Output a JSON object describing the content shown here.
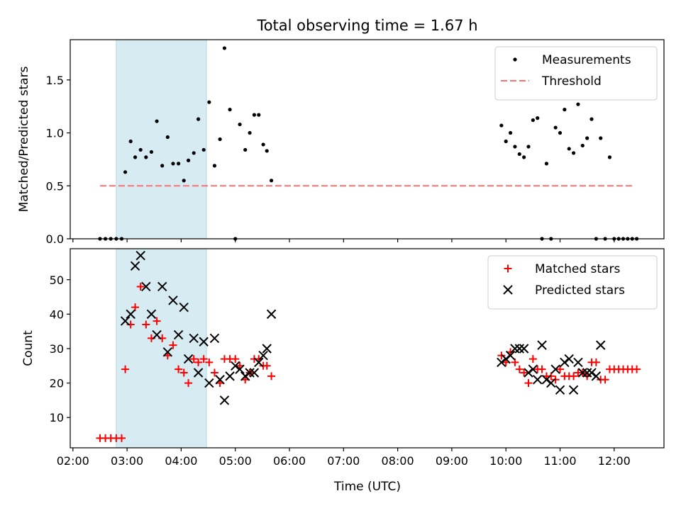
{
  "chart_data": {
    "type": "scatter",
    "title": "Total observing time = 1.67 h",
    "xlabel": "Time (UTC)",
    "x_ticks": [
      "02:00",
      "03:00",
      "04:00",
      "05:00",
      "06:00",
      "07:00",
      "08:00",
      "09:00",
      "10:00",
      "11:00",
      "12:00"
    ],
    "highlight_span": {
      "start": "02:48",
      "end": "04:28",
      "color": "#add8e6"
    },
    "panels": [
      {
        "name": "ratio",
        "ylabel": "Matched/Predicted stars",
        "ylim": [
          0,
          1.88
        ],
        "y_ticks": [
          "0.0",
          "0.5",
          "1.0",
          "1.5"
        ],
        "legend": {
          "position": "top-right",
          "entries": [
            "Measurements",
            "Threshold"
          ]
        },
        "threshold": {
          "label": "Threshold",
          "value": 0.5,
          "x_range": [
            "02:30",
            "12:20"
          ],
          "color": "#ff7070"
        },
        "series": [
          {
            "name": "Measurements",
            "marker": "dot",
            "color": "#000000",
            "points": [
              [
                "02:30",
                0.0
              ],
              [
                "02:36",
                0.0
              ],
              [
                "02:42",
                0.0
              ],
              [
                "02:48",
                0.0
              ],
              [
                "02:54",
                0.0
              ],
              [
                "02:58",
                0.63
              ],
              [
                "03:04",
                0.92
              ],
              [
                "03:09",
                0.77
              ],
              [
                "03:15",
                0.84
              ],
              [
                "03:21",
                0.77
              ],
              [
                "03:27",
                0.82
              ],
              [
                "03:33",
                1.11
              ],
              [
                "03:39",
                0.69
              ],
              [
                "03:45",
                0.96
              ],
              [
                "03:51",
                0.71
              ],
              [
                "03:57",
                0.71
              ],
              [
                "04:03",
                0.55
              ],
              [
                "04:08",
                0.74
              ],
              [
                "04:14",
                0.81
              ],
              [
                "04:19",
                1.13
              ],
              [
                "04:25",
                0.84
              ],
              [
                "04:31",
                1.29
              ],
              [
                "04:37",
                0.69
              ],
              [
                "04:43",
                0.94
              ],
              [
                "04:48",
                1.8
              ],
              [
                "04:54",
                1.22
              ],
              [
                "05:00",
                0.0
              ],
              [
                "05:05",
                1.08
              ],
              [
                "05:11",
                0.84
              ],
              [
                "05:16",
                1.0
              ],
              [
                "05:21",
                1.17
              ],
              [
                "05:26",
                1.17
              ],
              [
                "05:31",
                0.89
              ],
              [
                "05:35",
                0.83
              ],
              [
                "05:40",
                0.55
              ],
              [
                "09:55",
                1.07
              ],
              [
                "10:00",
                0.92
              ],
              [
                "10:05",
                1.0
              ],
              [
                "10:10",
                0.87
              ],
              [
                "10:15",
                0.8
              ],
              [
                "10:20",
                0.77
              ],
              [
                "10:25",
                0.87
              ],
              [
                "10:30",
                1.12
              ],
              [
                "10:35",
                1.14
              ],
              [
                "10:40",
                0.0
              ],
              [
                "10:45",
                0.71
              ],
              [
                "10:50",
                0.0
              ],
              [
                "10:55",
                1.05
              ],
              [
                "11:00",
                1.0
              ],
              [
                "11:05",
                1.22
              ],
              [
                "11:10",
                0.85
              ],
              [
                "11:15",
                0.81
              ],
              [
                "11:20",
                1.27
              ],
              [
                "11:25",
                0.88
              ],
              [
                "11:30",
                0.95
              ],
              [
                "11:35",
                1.13
              ],
              [
                "11:40",
                0.0
              ],
              [
                "11:45",
                0.95
              ],
              [
                "11:50",
                0.0
              ],
              [
                "11:55",
                0.77
              ],
              [
                "12:00",
                0.0
              ],
              [
                "12:05",
                0.0
              ],
              [
                "12:10",
                0.0
              ],
              [
                "12:15",
                0.0
              ],
              [
                "12:20",
                0.0
              ],
              [
                "12:25",
                0.0
              ]
            ]
          }
        ]
      },
      {
        "name": "count",
        "ylabel": "Count",
        "ylim": [
          1.2,
          59
        ],
        "y_ticks": [
          "10",
          "20",
          "30",
          "40",
          "50"
        ],
        "legend": {
          "position": "top-right",
          "entries": [
            "Matched stars",
            "Predicted stars"
          ]
        },
        "series": [
          {
            "name": "Matched stars",
            "marker": "plus",
            "color": "#ff0000",
            "points": [
              [
                "02:30",
                4
              ],
              [
                "02:36",
                4
              ],
              [
                "02:42",
                4
              ],
              [
                "02:48",
                4
              ],
              [
                "02:54",
                4
              ],
              [
                "02:58",
                24
              ],
              [
                "03:04",
                37
              ],
              [
                "03:09",
                42
              ],
              [
                "03:15",
                48
              ],
              [
                "03:21",
                37
              ],
              [
                "03:27",
                33
              ],
              [
                "03:33",
                38
              ],
              [
                "03:39",
                33
              ],
              [
                "03:45",
                28
              ],
              [
                "03:51",
                31
              ],
              [
                "03:57",
                24
              ],
              [
                "04:03",
                23
              ],
              [
                "04:08",
                20
              ],
              [
                "04:14",
                27
              ],
              [
                "04:19",
                26
              ],
              [
                "04:25",
                27
              ],
              [
                "04:31",
                26
              ],
              [
                "04:37",
                23
              ],
              [
                "04:43",
                20
              ],
              [
                "04:48",
                27
              ],
              [
                "04:54",
                27
              ],
              [
                "05:00",
                27
              ],
              [
                "05:05",
                25
              ],
              [
                "05:11",
                21
              ],
              [
                "05:16",
                23
              ],
              [
                "05:21",
                27
              ],
              [
                "05:26",
                27
              ],
              [
                "05:31",
                25
              ],
              [
                "05:35",
                25
              ],
              [
                "05:40",
                22
              ],
              [
                "09:55",
                28
              ],
              [
                "10:00",
                26
              ],
              [
                "10:05",
                29
              ],
              [
                "10:10",
                26
              ],
              [
                "10:15",
                24
              ],
              [
                "10:20",
                23
              ],
              [
                "10:25",
                20
              ],
              [
                "10:30",
                27
              ],
              [
                "10:35",
                24
              ],
              [
                "10:40",
                24
              ],
              [
                "10:45",
                22
              ],
              [
                "10:50",
                22
              ],
              [
                "10:55",
                21
              ],
              [
                "11:00",
                24
              ],
              [
                "11:05",
                22
              ],
              [
                "11:10",
                22
              ],
              [
                "11:15",
                22
              ],
              [
                "11:20",
                23
              ],
              [
                "11:25",
                23
              ],
              [
                "11:30",
                22
              ],
              [
                "11:35",
                26
              ],
              [
                "11:40",
                26
              ],
              [
                "11:45",
                21
              ],
              [
                "11:50",
                21
              ],
              [
                "11:55",
                24
              ],
              [
                "12:00",
                24
              ],
              [
                "12:05",
                24
              ],
              [
                "12:10",
                24
              ],
              [
                "12:15",
                24
              ],
              [
                "12:20",
                24
              ],
              [
                "12:25",
                24
              ]
            ]
          },
          {
            "name": "Predicted stars",
            "marker": "x",
            "color": "#000000",
            "points": [
              [
                "02:58",
                38
              ],
              [
                "03:04",
                40
              ],
              [
                "03:09",
                54
              ],
              [
                "03:15",
                57
              ],
              [
                "03:21",
                48
              ],
              [
                "03:27",
                40
              ],
              [
                "03:33",
                34
              ],
              [
                "03:39",
                48
              ],
              [
                "03:45",
                29
              ],
              [
                "03:51",
                44
              ],
              [
                "03:57",
                34
              ],
              [
                "04:03",
                42
              ],
              [
                "04:08",
                27
              ],
              [
                "04:14",
                33
              ],
              [
                "04:19",
                23
              ],
              [
                "04:25",
                32
              ],
              [
                "04:31",
                20
              ],
              [
                "04:37",
                33
              ],
              [
                "04:43",
                21
              ],
              [
                "04:48",
                15
              ],
              [
                "04:54",
                22
              ],
              [
                "05:00",
                25
              ],
              [
                "05:05",
                24
              ],
              [
                "05:11",
                22
              ],
              [
                "05:16",
                23
              ],
              [
                "05:21",
                23
              ],
              [
                "05:26",
                26
              ],
              [
                "05:31",
                28
              ],
              [
                "05:35",
                30
              ],
              [
                "05:40",
                40
              ],
              [
                "09:55",
                26
              ],
              [
                "10:00",
                27
              ],
              [
                "10:05",
                28
              ],
              [
                "10:10",
                30
              ],
              [
                "10:15",
                30
              ],
              [
                "10:20",
                30
              ],
              [
                "10:25",
                23
              ],
              [
                "10:30",
                24
              ],
              [
                "10:35",
                21
              ],
              [
                "10:40",
                31
              ],
              [
                "10:45",
                21
              ],
              [
                "10:50",
                20
              ],
              [
                "10:55",
                24
              ],
              [
                "11:00",
                18
              ],
              [
                "11:05",
                26
              ],
              [
                "11:10",
                27
              ],
              [
                "11:15",
                18
              ],
              [
                "11:20",
                26
              ],
              [
                "11:25",
                23
              ],
              [
                "11:30",
                23
              ],
              [
                "11:35",
                23
              ],
              [
                "11:40",
                22
              ],
              [
                "11:45",
                31
              ]
            ]
          }
        ]
      }
    ]
  }
}
